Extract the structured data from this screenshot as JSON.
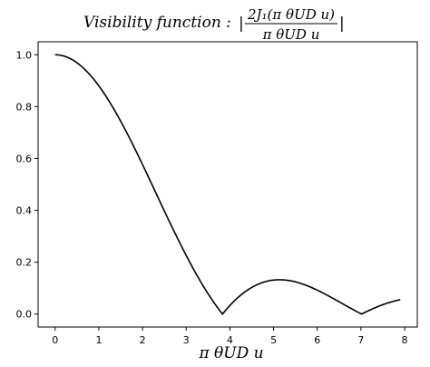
{
  "chart_data": {
    "type": "line",
    "title_prefix": "Visibility function :",
    "title_numerator": "2J₁(π θUD u)",
    "title_denominator": "π θUD u",
    "xlabel": "π θUD u",
    "ylabel": "",
    "xlim": [
      -0.39,
      8.29
    ],
    "ylim": [
      -0.05,
      1.05
    ],
    "xticks": [
      0,
      1,
      2,
      3,
      4,
      5,
      6,
      7,
      8
    ],
    "yticks": [
      0.0,
      0.2,
      0.4,
      0.6,
      0.8,
      1.0
    ],
    "xtick_labels": [
      "0",
      "1",
      "2",
      "3",
      "4",
      "5",
      "6",
      "7",
      "8"
    ],
    "ytick_labels": [
      "0.0",
      "0.2",
      "0.4",
      "0.6",
      "0.8",
      "1.0"
    ],
    "grid": false,
    "line_color": "#000000",
    "series": [
      {
        "function": "abs(2*J1(x)/x)",
        "x_range": [
          0,
          7.9
        ],
        "samples": 400
      }
    ]
  }
}
